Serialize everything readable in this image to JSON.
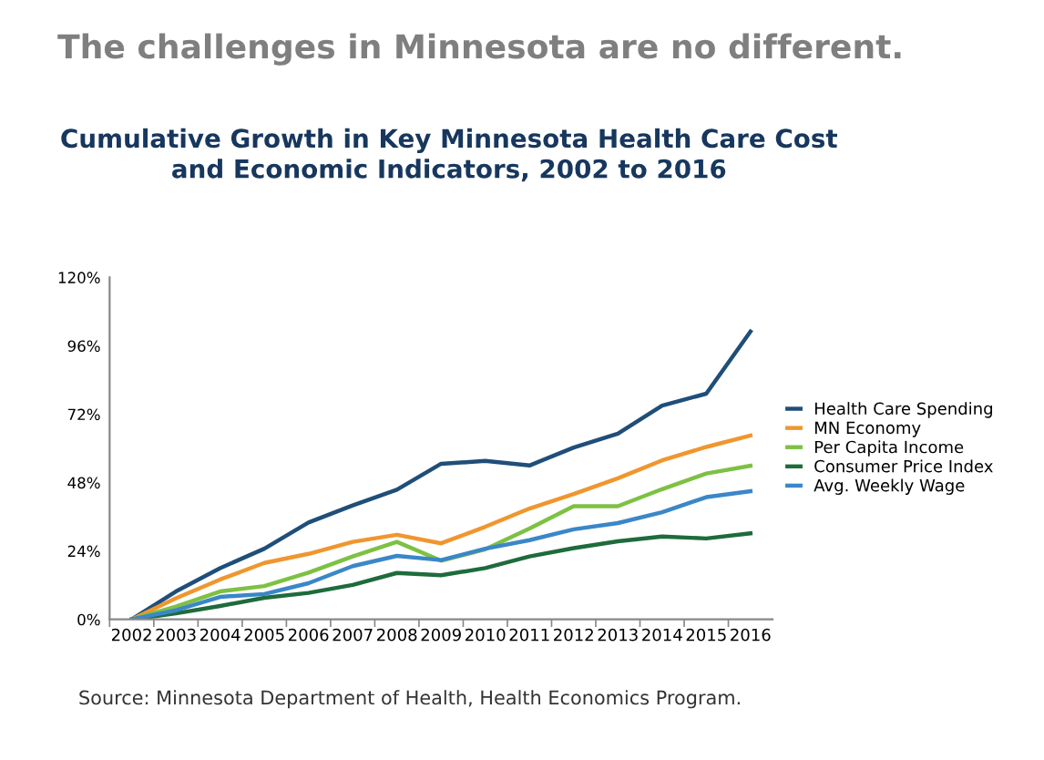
{
  "chart_data": {
    "type": "line",
    "title": "The challenges in Minnesota are no different.",
    "subtitle": "Cumulative Growth in Key Minnesota Health Care Cost\nand Economic Indicators, 2002 to 2016",
    "categories": [
      "2002",
      "2003",
      "2004",
      "2005",
      "2006",
      "2007",
      "2008",
      "2009",
      "2010",
      "2011",
      "2012",
      "2013",
      "2014",
      "2015",
      "2016"
    ],
    "series": [
      {
        "name": "Health Care Spending",
        "color": "#1f4e79",
        "values": [
          0,
          9.8,
          18,
          24.8,
          34,
          40,
          45.5,
          54.6,
          55.6,
          54,
          60.3,
          65.2,
          75,
          79.2,
          101
        ]
      },
      {
        "name": "MN Economy",
        "color": "#f0962e",
        "values": [
          0,
          7.4,
          14,
          19.8,
          23,
          27.2,
          29.7,
          26.7,
          32.5,
          38.9,
          44,
          49.5,
          55.8,
          60.5,
          64.5
        ]
      },
      {
        "name": "Per Capita Income",
        "color": "#7dc143",
        "values": [
          0,
          4.5,
          9.8,
          11.7,
          16.4,
          22.1,
          27.2,
          20.6,
          24.6,
          31.9,
          39.7,
          39.7,
          45.7,
          51.2,
          53.9
        ]
      },
      {
        "name": "Consumer Price Index",
        "color": "#1e6b3c",
        "values": [
          0,
          2.1,
          4.7,
          7.6,
          9.3,
          12.1,
          16.3,
          15.5,
          18,
          22.1,
          25,
          27.4,
          29.1,
          28.4,
          30.2
        ]
      },
      {
        "name": "Avg. Weekly Wage",
        "color": "#3a87c8",
        "values": [
          0,
          3.2,
          7.9,
          8.9,
          12.7,
          18.7,
          22.3,
          20.8,
          24.8,
          27.8,
          31.6,
          33.8,
          37.6,
          42.9,
          45
        ]
      }
    ],
    "ylim": [
      0,
      120
    ],
    "yticks": [
      {
        "value": 0,
        "label": "0%"
      },
      {
        "value": 24,
        "label": "24%"
      },
      {
        "value": 48,
        "label": "48%"
      },
      {
        "value": 72,
        "label": "72%"
      },
      {
        "value": 96,
        "label": "96%"
      },
      {
        "value": 120,
        "label": "120%"
      }
    ],
    "grid": false,
    "legend": "right",
    "marker": "none",
    "line_style": "solid",
    "annotations": [
      "Source: Minnesota Department of Health, Health Economics Program."
    ]
  }
}
